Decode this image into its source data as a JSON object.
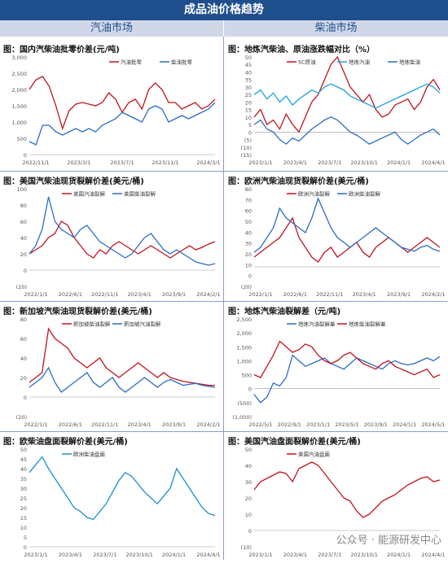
{
  "header": {
    "title": "成品油价格趋势",
    "left_section": "汽油市场",
    "right_section": "柴油市场"
  },
  "watermark": "公众号 · 能源研发中心",
  "chart_data": [
    {
      "id": "p1",
      "type": "line",
      "title": "图：国内汽柴油批零价差(元/吨)",
      "ylim": [
        0,
        3000
      ],
      "yticks": [
        "0",
        "500",
        "1,000",
        "1,500",
        "2,000",
        "2,500",
        "3,000"
      ],
      "xticks": [
        "2022/11/1",
        "2023/3/1",
        "2023/7/1",
        "2023/11/1",
        "2024/3/1"
      ],
      "legend_pos": "top-right",
      "series": [
        {
          "name": "汽油批零",
          "color": "#c0141e",
          "values": [
            2000,
            2300,
            2400,
            2100,
            1500,
            800,
            1350,
            1550,
            1600,
            1550,
            1500,
            1600,
            1900,
            1700,
            1300,
            1600,
            1700,
            1400,
            2000,
            2200,
            2000,
            1600,
            1600,
            1400,
            1500,
            1600,
            1400,
            1500,
            1700
          ]
        },
        {
          "name": "柴油批零",
          "color": "#2b6cc4",
          "values": [
            400,
            300,
            900,
            900,
            700,
            600,
            700,
            800,
            700,
            800,
            700,
            900,
            1000,
            1100,
            1300,
            1200,
            1100,
            1000,
            1400,
            1500,
            1400,
            1000,
            1100,
            1200,
            1100,
            1200,
            1300,
            1400,
            1600
          ]
        }
      ]
    },
    {
      "id": "p2",
      "type": "line",
      "title": "图：地炼汽柴油、原油涨跌幅对比（%）",
      "ylim": [
        -15,
        50
      ],
      "yticks": [
        "(15)",
        "(10)",
        "(5)",
        "0",
        "5",
        "10",
        "15",
        "20",
        "25",
        "30",
        "35",
        "40",
        "45",
        "50"
      ],
      "xticks": [
        "2023/1/1",
        "2023/4/1",
        "2023/7/1",
        "2023/10/1",
        "2024/1/1",
        "2024/4/1"
      ],
      "legend_pos": "top",
      "series": [
        {
          "name": "SC原油",
          "color": "#c0141e",
          "values": [
            10,
            15,
            5,
            8,
            2,
            12,
            5,
            0,
            10,
            20,
            25,
            35,
            45,
            50,
            40,
            30,
            25,
            20,
            25,
            15,
            10,
            12,
            18,
            20,
            22,
            15,
            20,
            30,
            35,
            28
          ]
        },
        {
          "name": "地炼汽油",
          "color": "#1aa0dc",
          "values": [
            25,
            28,
            22,
            26,
            20,
            24,
            18,
            22,
            25,
            28,
            26,
            30,
            32,
            30,
            28,
            24,
            22,
            20,
            18,
            16,
            18,
            20,
            22,
            24,
            26,
            28,
            30,
            32,
            30,
            26
          ]
        },
        {
          "name": "地炼柴油",
          "color": "#2b6cc4",
          "values": [
            5,
            8,
            2,
            0,
            -5,
            -8,
            -4,
            -6,
            -2,
            2,
            5,
            8,
            10,
            8,
            4,
            0,
            -2,
            -5,
            -8,
            -6,
            -4,
            -2,
            0,
            -5,
            -8,
            -5,
            -2,
            0,
            2,
            -2
          ]
        }
      ]
    },
    {
      "id": "p3",
      "type": "line",
      "title": "图：美国汽柴油现货裂解价差(美元/桶)",
      "ylim": [
        -20,
        100
      ],
      "yticks": [
        "(20)",
        "0",
        "20",
        "40",
        "60",
        "80",
        "100"
      ],
      "xticks": [
        "2022/1/1",
        "2022/6/1",
        "2022/11/1",
        "2023/4/1",
        "2023/9/1",
        "2024/2/1"
      ],
      "legend_pos": "top",
      "series": [
        {
          "name": "美国汽油裂解",
          "color": "#c0141e",
          "values": [
            20,
            25,
            30,
            40,
            45,
            60,
            55,
            40,
            30,
            20,
            15,
            25,
            20,
            30,
            35,
            30,
            25,
            20,
            25,
            30,
            25,
            20,
            15,
            20,
            25,
            30,
            25,
            28,
            32,
            35
          ]
        },
        {
          "name": "美国柴油裂解",
          "color": "#2b6cc4",
          "values": [
            20,
            30,
            50,
            90,
            60,
            50,
            45,
            40,
            50,
            55,
            45,
            35,
            30,
            25,
            20,
            15,
            20,
            30,
            40,
            45,
            35,
            25,
            20,
            25,
            20,
            15,
            10,
            8,
            6,
            8
          ]
        }
      ]
    },
    {
      "id": "p4",
      "type": "line",
      "title": "图：欧洲汽柴油现货裂解价差(美元/桶)",
      "ylim": [
        -20,
        80
      ],
      "yticks": [
        "(20)",
        "0",
        "10",
        "20",
        "30",
        "40",
        "50",
        "60",
        "70",
        "80"
      ],
      "xticks": [
        "2022/1/1",
        "2022/6/1",
        "2022/11/1",
        "2023/4/1",
        "2023/9/1",
        "2024/2/1"
      ],
      "legend_pos": "top",
      "series": [
        {
          "name": "欧洲汽油裂解",
          "color": "#c0141e",
          "values": [
            10,
            15,
            20,
            25,
            30,
            40,
            50,
            30,
            20,
            10,
            5,
            15,
            20,
            10,
            15,
            20,
            25,
            15,
            10,
            20,
            25,
            30,
            25,
            20,
            15,
            20,
            25,
            30,
            25,
            20
          ]
        },
        {
          "name": "欧洲柴油裂解",
          "color": "#2b6cc4",
          "values": [
            15,
            20,
            30,
            40,
            60,
            50,
            45,
            40,
            35,
            50,
            70,
            55,
            40,
            30,
            25,
            20,
            25,
            30,
            35,
            40,
            35,
            30,
            25,
            20,
            18,
            16,
            20,
            22,
            18,
            16
          ]
        }
      ]
    },
    {
      "id": "p5",
      "type": "line",
      "title": "图：新加坡汽柴油现货裂解价差(美元/桶)",
      "ylim": [
        -20,
        80
      ],
      "yticks": [
        "(20)",
        "0",
        "20",
        "40",
        "60",
        "80"
      ],
      "xticks": [
        "2022/1/1",
        "2022/6/1",
        "2022/11/1",
        "2023/4/1",
        "2023/9/1",
        "2024/2/1"
      ],
      "legend_pos": "top",
      "series": [
        {
          "name": "新加坡柴油裂解",
          "color": "#c0141e",
          "values": [
            15,
            20,
            25,
            70,
            60,
            55,
            50,
            40,
            35,
            30,
            35,
            40,
            30,
            25,
            20,
            25,
            30,
            35,
            30,
            25,
            20,
            25,
            20,
            18,
            16,
            15,
            14,
            13,
            12,
            12
          ]
        },
        {
          "name": "新加坡汽油裂解",
          "color": "#2b6cc4",
          "values": [
            10,
            15,
            20,
            30,
            15,
            5,
            10,
            15,
            20,
            25,
            15,
            10,
            15,
            20,
            10,
            5,
            10,
            15,
            20,
            15,
            10,
            15,
            18,
            15,
            12,
            13,
            14,
            12,
            11,
            10
          ]
        }
      ]
    },
    {
      "id": "p6",
      "type": "line",
      "title": "图：地炼汽柴油裂解差（元/吨)",
      "ylim": [
        -1000,
        2500
      ],
      "yticks": [
        "(1,000)",
        "(500)",
        "0",
        "500",
        "1,000",
        "1,500",
        "2,000",
        "2,500"
      ],
      "xticks": [
        "2022/5/1",
        "2022/9/1",
        "2023/1/1",
        "2023/5/1",
        "2023/9/1",
        "2024/1/1",
        "2024/5/1"
      ],
      "legend_pos": "top",
      "series": [
        {
          "name": "地炼汽油裂解差",
          "color": "#2b6cc4",
          "values": [
            -200,
            -500,
            -300,
            200,
            100,
            400,
            1200,
            1000,
            800,
            900,
            1000,
            1100,
            900,
            800,
            700,
            900,
            1100,
            1000,
            900,
            800,
            700,
            900,
            1000,
            900,
            850,
            900,
            1000,
            1100,
            1000,
            1150
          ]
        },
        {
          "name": "地炼柴油裂解差",
          "color": "#c0141e",
          "values": [
            500,
            400,
            800,
            1200,
            1700,
            1500,
            1300,
            1400,
            1600,
            1500,
            1200,
            1000,
            900,
            1000,
            1200,
            1300,
            1100,
            900,
            800,
            700,
            900,
            1000,
            800,
            700,
            600,
            500,
            600,
            700,
            400,
            500
          ]
        }
      ]
    },
    {
      "id": "p7",
      "type": "line",
      "title": "图：欧柴油盘面裂解价差(美元/桶)",
      "ylim": [
        0,
        50
      ],
      "yticks": [
        "0",
        "5",
        "10",
        "15",
        "20",
        "25",
        "30",
        "35",
        "40",
        "45",
        "50"
      ],
      "xticks": [
        "2023/1/1",
        "2023/4/1",
        "2023/7/1",
        "2023/10/1",
        "2024/1/1",
        "2024/4/1"
      ],
      "legend_pos": "top",
      "series": [
        {
          "name": "欧洲柴油盘面",
          "color": "#1a8fd1",
          "values": [
            38,
            42,
            46,
            40,
            35,
            30,
            25,
            20,
            18,
            15,
            14,
            18,
            22,
            28,
            34,
            38,
            36,
            32,
            28,
            25,
            22,
            26,
            30,
            40,
            35,
            30,
            25,
            20,
            17,
            16
          ]
        }
      ]
    },
    {
      "id": "p8",
      "type": "line",
      "title": "图：美国汽油盘面裂解价差(美元/桶)",
      "ylim": [
        -10,
        50
      ],
      "yticks": [
        "(10)",
        "0",
        "10",
        "20",
        "30",
        "40",
        "50"
      ],
      "xticks": [
        "2023/1/1",
        "2023/4/1",
        "2023/7/1",
        "2023/10/1",
        "2024/1/1",
        "2024/4/1"
      ],
      "legend_pos": "top",
      "series": [
        {
          "name": "美国汽油盘面",
          "color": "#c0141e",
          "values": [
            25,
            30,
            32,
            34,
            36,
            35,
            30,
            38,
            40,
            42,
            40,
            35,
            30,
            25,
            20,
            18,
            12,
            8,
            10,
            14,
            18,
            20,
            22,
            25,
            28,
            30,
            32,
            33,
            30,
            31
          ]
        }
      ]
    }
  ]
}
